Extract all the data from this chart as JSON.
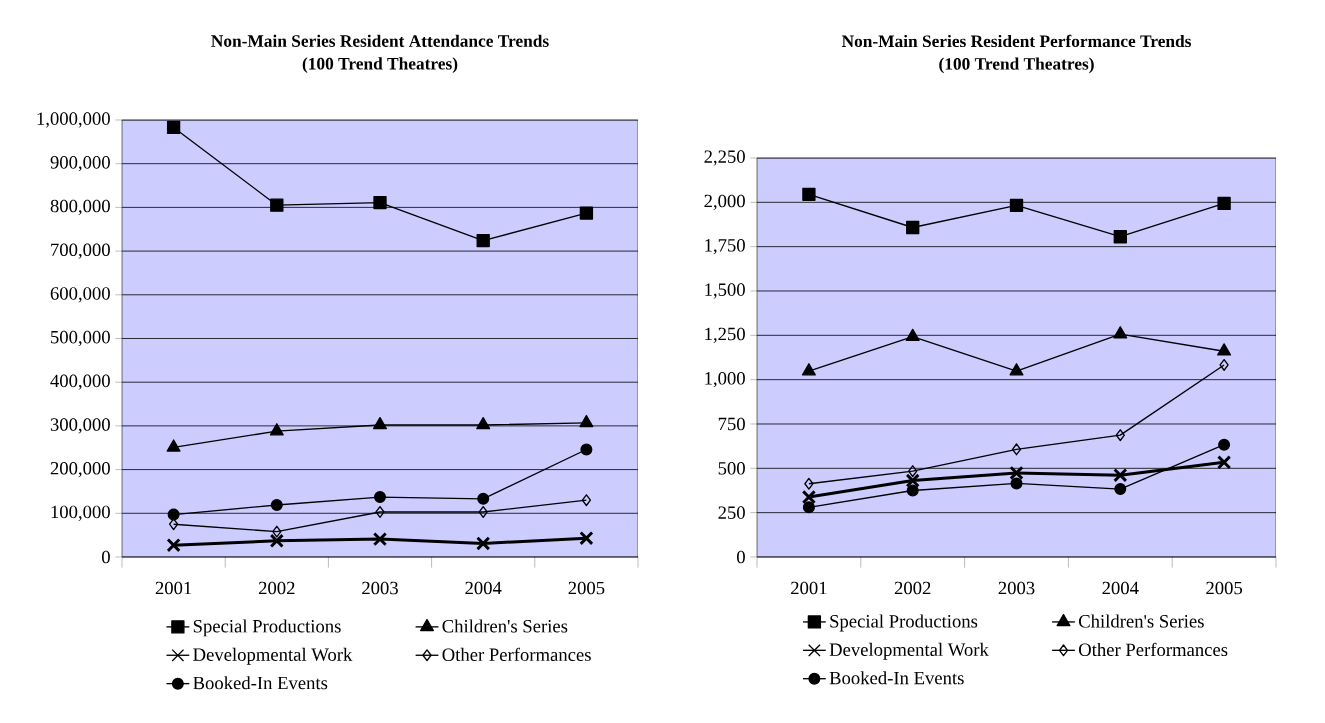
{
  "chart_data": [
    {
      "type": "line",
      "title": "Non-Main Series Resident Attendance Trends",
      "subtitle": "(100 Trend Theatres)",
      "categories": [
        "2001",
        "2002",
        "2003",
        "2004",
        "2005"
      ],
      "ylim": [
        0,
        1000000
      ],
      "yticks": [
        0,
        {
          "value": 100000,
          "label": "100,000"
        },
        {
          "value": 200000,
          "label": "200,000"
        },
        {
          "value": 300000,
          "label": "300,000"
        },
        {
          "value": 400000,
          "label": "400,000"
        },
        {
          "value": 500000,
          "label": "500,000"
        },
        {
          "value": 600000,
          "label": "600,000"
        },
        {
          "value": 700000,
          "label": "700,000"
        },
        {
          "value": 800000,
          "label": "800,000"
        },
        {
          "value": 900000,
          "label": "900,000"
        },
        {
          "value": 1000000,
          "label": "1,000,000"
        }
      ],
      "grid": "y",
      "legend": "bottom",
      "series": [
        {
          "name": "Special Productions",
          "color": "#000000",
          "marker": "square",
          "values": [
            983000,
            805000,
            811000,
            724000,
            787000
          ]
        },
        {
          "name": "Children's Series",
          "color": "#000000",
          "marker": "triangle",
          "values": [
            251000,
            288000,
            302000,
            302000,
            307000
          ]
        },
        {
          "name": "Developmental Work",
          "color": "#000000",
          "marker": "cross",
          "values": [
            27000,
            37000,
            41000,
            31000,
            43000
          ]
        },
        {
          "name": "Other Performances",
          "color": "#000000",
          "marker": "diamond",
          "values": [
            75000,
            58000,
            103000,
            103000,
            130000
          ]
        },
        {
          "name": "Booked-In Events",
          "color": "#000000",
          "marker": "circle",
          "values": [
            97000,
            119000,
            137000,
            133000,
            246000
          ]
        }
      ]
    },
    {
      "type": "line",
      "title": "Non-Main Series Resident Performance Trends",
      "subtitle": "(100 Trend Theatres)",
      "categories": [
        "2001",
        "2002",
        "2003",
        "2004",
        "2005"
      ],
      "ylim": [
        0,
        2250
      ],
      "yticks": [
        0,
        250,
        500,
        750,
        {
          "value": 1000,
          "label": "1,000"
        },
        {
          "value": 1250,
          "label": "1,250"
        },
        {
          "value": 1500,
          "label": "1,500"
        },
        {
          "value": 1750,
          "label": "1,750"
        },
        {
          "value": 2000,
          "label": "2,000"
        },
        {
          "value": 2250,
          "label": "2,250"
        }
      ],
      "grid": "y",
      "legend": "bottom",
      "series": [
        {
          "name": "Special Productions",
          "color": "#000000",
          "marker": "square",
          "values": [
            2045,
            1858,
            1983,
            1806,
            1994
          ]
        },
        {
          "name": "Children's Series",
          "color": "#000000",
          "marker": "triangle",
          "values": [
            1048,
            1242,
            1048,
            1257,
            1160
          ]
        },
        {
          "name": "Developmental Work",
          "color": "#000000",
          "marker": "cross",
          "values": [
            338,
            431,
            474,
            461,
            534
          ]
        },
        {
          "name": "Other Performances",
          "color": "#000000",
          "marker": "diamond",
          "values": [
            413,
            484,
            607,
            687,
            1083
          ]
        },
        {
          "name": "Booked-In Events",
          "color": "#000000",
          "marker": "circle",
          "values": [
            280,
            375,
            415,
            383,
            633
          ]
        }
      ]
    }
  ]
}
